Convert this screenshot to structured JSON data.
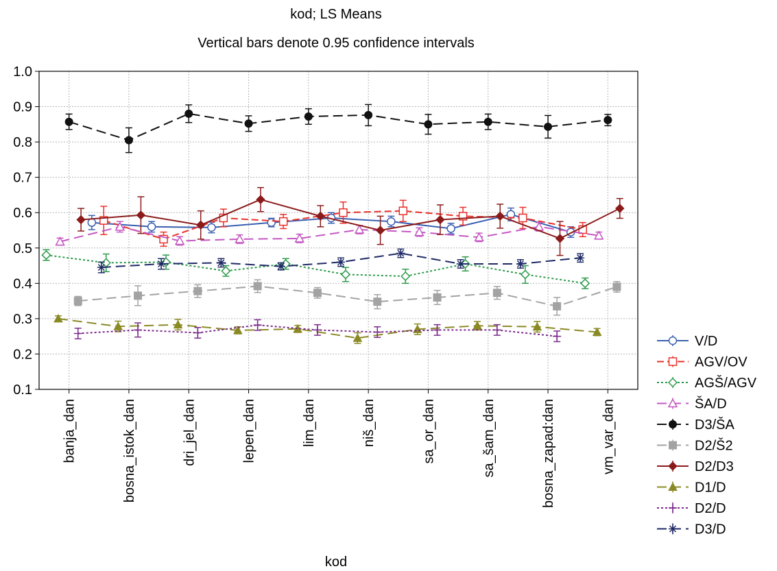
{
  "chart_data": {
    "type": "line",
    "title": "kod; LS Means",
    "subtitle": "Vertical bars denote 0.95 confidence intervals",
    "xlabel": "kod",
    "ylabel": "",
    "categories": [
      "banja_dan",
      "bosna_istok_dan",
      "dri_jel_dan",
      "lepen_dan",
      "lim_dan",
      "niš_dan",
      "sa_or_dan",
      "sa_šam_dan",
      "bosna_zapad:dan",
      "vm_var_dan"
    ],
    "ylim": [
      0.1,
      1.0
    ],
    "yticks": [
      "0.1",
      "0.2",
      "0.3",
      "0.4",
      "0.5",
      "0.6",
      "0.7",
      "0.8",
      "0.9",
      "1.0"
    ],
    "grid": true,
    "legend_position": "bottom-right",
    "series": [
      {
        "name": "V/D",
        "color": "#3a5fb0",
        "marker": "circle-open",
        "dash": "solid",
        "offset": 0.38,
        "values": [
          0.572,
          0.56,
          0.558,
          0.572,
          0.585,
          0.575,
          0.555,
          0.595,
          0.545,
          null
        ],
        "ci": [
          0.02,
          0.015,
          0.015,
          0.012,
          0.015,
          0.015,
          0.015,
          0.018,
          0.015,
          null
        ]
      },
      {
        "name": "AGV/OV",
        "color": "#e8302a",
        "marker": "square-open",
        "dash": "dash",
        "offset": -0.42,
        "values": [
          null,
          0.578,
          0.525,
          0.585,
          0.575,
          0.6,
          0.605,
          0.59,
          0.585,
          0.552
        ],
        "ci": [
          null,
          0.04,
          0.02,
          0.025,
          0.02,
          0.03,
          0.03,
          0.025,
          0.03,
          0.02
        ]
      },
      {
        "name": "AGŠ/AGV",
        "color": "#2c9a4a",
        "marker": "diamond-open",
        "dash": "dot",
        "offset": -0.38,
        "values": [
          0.48,
          0.458,
          0.46,
          0.435,
          0.455,
          0.425,
          0.42,
          0.455,
          0.425,
          0.4
        ],
        "ci": [
          0.015,
          0.025,
          0.02,
          0.015,
          0.015,
          0.02,
          0.02,
          0.02,
          0.025,
          0.015
        ]
      },
      {
        "name": "ŠA/D",
        "color": "#c457c2",
        "marker": "triangle-open",
        "dash": "longdash",
        "offset": -0.15,
        "values": [
          0.518,
          0.56,
          0.52,
          0.525,
          0.527,
          0.552,
          0.545,
          0.53,
          0.56,
          0.535
        ],
        "ci": [
          0.01,
          0.015,
          0.012,
          0.012,
          0.012,
          0.012,
          0.012,
          0.012,
          0.012,
          0.01
        ]
      },
      {
        "name": "D3/ŠA",
        "color": "#111111",
        "marker": "circle-filled",
        "dash": "longdash",
        "offset": 0.0,
        "values": [
          0.857,
          0.805,
          0.88,
          0.852,
          0.872,
          0.876,
          0.85,
          0.857,
          0.843,
          0.862
        ],
        "ci": [
          0.022,
          0.035,
          0.025,
          0.022,
          0.022,
          0.03,
          0.028,
          0.022,
          0.032,
          0.016
        ]
      },
      {
        "name": "D2/Š2",
        "color": "#a3a3a3",
        "marker": "square-filled",
        "dash": "longdash",
        "offset": 0.15,
        "values": [
          0.35,
          0.365,
          0.378,
          0.392,
          0.373,
          0.348,
          0.36,
          0.373,
          0.335,
          0.39
        ],
        "ci": [
          0.013,
          0.028,
          0.018,
          0.018,
          0.015,
          0.02,
          0.02,
          0.018,
          0.025,
          0.015
        ]
      },
      {
        "name": "D2/D3",
        "color": "#8b1a1a",
        "marker": "diamond-filled",
        "dash": "solid",
        "offset": 0.2,
        "values": [
          0.58,
          0.593,
          0.565,
          0.637,
          0.59,
          0.55,
          0.58,
          0.59,
          0.527,
          0.612
        ],
        "ci": [
          0.032,
          0.052,
          0.04,
          0.034,
          0.03,
          0.04,
          0.042,
          0.034,
          0.048,
          0.028
        ]
      },
      {
        "name": "D1/D",
        "color": "#8a8a25",
        "marker": "triangle-filled",
        "dash": "longdash",
        "offset": -0.18,
        "values": [
          0.3,
          0.278,
          0.283,
          0.267,
          0.271,
          0.245,
          0.27,
          0.28,
          0.277,
          0.262
        ],
        "ci": [
          0.008,
          0.015,
          0.015,
          0.01,
          0.01,
          0.015,
          0.015,
          0.012,
          0.015,
          0.01
        ]
      },
      {
        "name": "D2/D",
        "color": "#7a2a8a",
        "marker": "plus",
        "dash": "dot",
        "offset": 0.15,
        "values": [
          0.258,
          0.268,
          0.26,
          0.282,
          0.268,
          0.262,
          0.268,
          0.268,
          0.25,
          null
        ],
        "ci": [
          0.015,
          0.02,
          0.015,
          0.015,
          0.015,
          0.015,
          0.015,
          0.015,
          0.015,
          null
        ]
      },
      {
        "name": "D3/D",
        "color": "#1f2a66",
        "marker": "asterisk",
        "dash": "longdash",
        "offset": -0.46,
        "values": [
          null,
          0.445,
          0.455,
          0.458,
          0.448,
          0.46,
          0.485,
          0.455,
          0.455,
          0.472
        ],
        "ci": [
          null,
          0.015,
          0.015,
          0.012,
          0.01,
          0.012,
          0.012,
          0.012,
          0.012,
          0.012
        ]
      }
    ]
  }
}
